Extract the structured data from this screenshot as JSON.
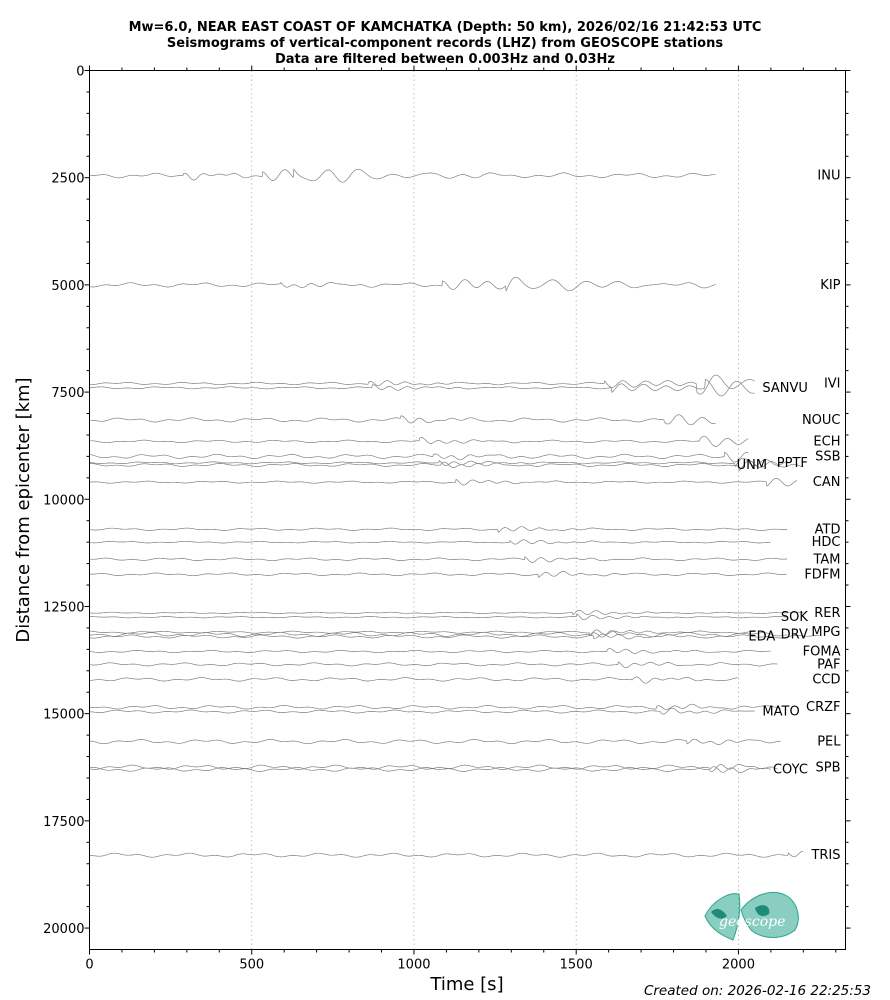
{
  "chart_data": {
    "type": "line",
    "title_lines": [
      "Mw=6.0, NEAR EAST COAST OF KAMCHATKA (Depth: 50 km), 2026/02/16 21:42:53 UTC",
      "Seismograms of vertical-component records (LHZ) from GEOSCOPE stations",
      "Data are filtered between 0.003Hz and 0.03Hz"
    ],
    "xlabel": "Time [s]",
    "ylabel": "Distance from epicenter [km]",
    "xlim": [
      0,
      2330
    ],
    "ylim": [
      20500,
      0
    ],
    "x_ticks": [
      0,
      500,
      1000,
      1500,
      2000
    ],
    "y_ticks": [
      0,
      2500,
      5000,
      7500,
      10000,
      12500,
      15000,
      17500,
      20000
    ],
    "grid": "vertical dotted at major x ticks",
    "trace_color": "#808080",
    "stations": [
      {
        "name": "INU",
        "distance": 2450,
        "end": 1930
      },
      {
        "name": "KIP",
        "distance": 5000,
        "end": 1930
      },
      {
        "name": "IVI",
        "distance": 7300,
        "end": 2050
      },
      {
        "name": "SANVU",
        "distance": 7400,
        "end": 2050
      },
      {
        "name": "NOUC",
        "distance": 8150,
        "end": 1930
      },
      {
        "name": "ECH",
        "distance": 8650,
        "end": 2030
      },
      {
        "name": "SSB",
        "distance": 9000,
        "end": 2030
      },
      {
        "name": "PPTF",
        "distance": 9150,
        "end": 2150
      },
      {
        "name": "UNM",
        "distance": 9200,
        "end": 2200
      },
      {
        "name": "CAN",
        "distance": 9600,
        "end": 2180
      },
      {
        "name": "ATD",
        "distance": 10700,
        "end": 2150
      },
      {
        "name": "HDC",
        "distance": 11000,
        "end": 2100
      },
      {
        "name": "TAM",
        "distance": 11400,
        "end": 2150
      },
      {
        "name": "FDFM",
        "distance": 11750,
        "end": 2150
      },
      {
        "name": "RER",
        "distance": 12650,
        "end": 2200
      },
      {
        "name": "SOK",
        "distance": 12750,
        "end": 2150
      },
      {
        "name": "MPG",
        "distance": 13100,
        "end": 2050
      },
      {
        "name": "DRV",
        "distance": 13150,
        "end": 2150
      },
      {
        "name": "EDA",
        "distance": 13200,
        "end": 2250
      },
      {
        "name": "FOMA",
        "distance": 13550,
        "end": 2100
      },
      {
        "name": "PAF",
        "distance": 13850,
        "end": 2120
      },
      {
        "name": "CCD",
        "distance": 14200,
        "end": 2000
      },
      {
        "name": "CRZF",
        "distance": 14850,
        "end": 2130
      },
      {
        "name": "MATO",
        "distance": 14950,
        "end": 2050
      },
      {
        "name": "PEL",
        "distance": 15650,
        "end": 2130
      },
      {
        "name": "SPB",
        "distance": 16250,
        "end": 2120
      },
      {
        "name": "COYC",
        "distance": 16300,
        "end": 2100
      },
      {
        "name": "TRIS",
        "distance": 18300,
        "end": 2200
      }
    ]
  },
  "logo": {
    "text": "geoscope",
    "color": "#2aa58e"
  },
  "footer": {
    "created": "Created on: 2026-02-16 22:25:53"
  }
}
